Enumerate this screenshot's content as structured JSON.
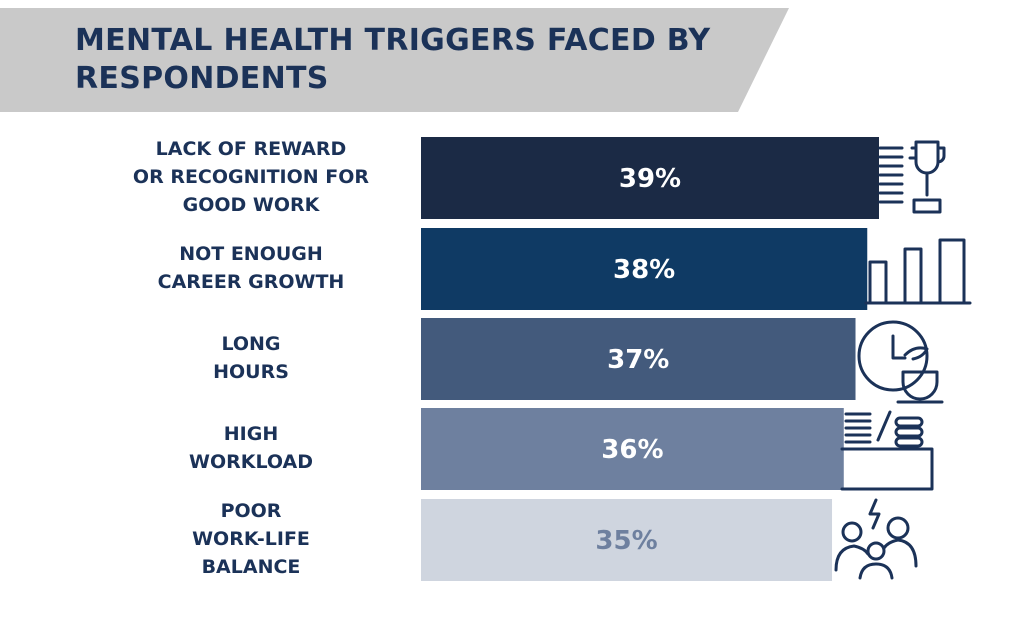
{
  "colors": {
    "banner": "#c9c9c9",
    "title": "#1b3258",
    "label": "#1b3258",
    "icon": "#1b3258",
    "bars": [
      "#1b2a45",
      "#0f3a64",
      "#435a7c",
      "#6e809f",
      "#cfd5df"
    ],
    "value_text": [
      "#ffffff",
      "#ffffff",
      "#ffffff",
      "#ffffff",
      "#6e809f"
    ]
  },
  "chart_data": {
    "type": "bar",
    "orientation": "horizontal",
    "title": "MENTAL HEALTH TRIGGERS FACED BY RESPONDENTS",
    "categories": [
      "LACK OF REWARD\nOR RECOGNITION FOR\nGOOD WORK",
      "NOT ENOUGH\nCAREER GROWTH",
      "LONG\nHOURS",
      "HIGH\nWORKLOAD",
      "POOR\nWORK-LIFE\nBALANCE"
    ],
    "values": [
      39,
      38,
      37,
      36,
      35
    ],
    "value_labels": [
      "39%",
      "38%",
      "37%",
      "36%",
      "35%"
    ],
    "unit": "%",
    "axes_visible": false,
    "grid": false,
    "icons": [
      "trophy-icon",
      "growth-bars-icon",
      "clock-coffee-icon",
      "workload-desk-icon",
      "stressed-family-icon"
    ]
  }
}
